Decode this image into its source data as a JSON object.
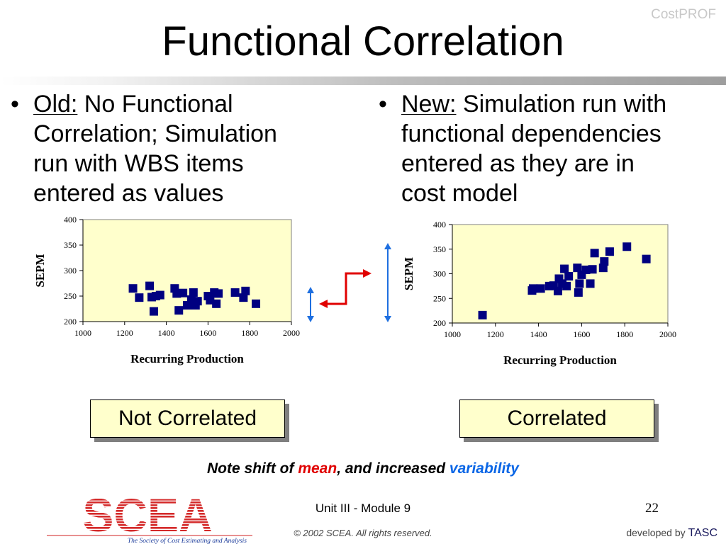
{
  "brand": "CostPROF",
  "title": "Functional Correlation",
  "bullets": {
    "left": {
      "lead": "Old:",
      "lines": [
        " No Functional",
        "Correlation; Simulation",
        "run with WBS items",
        "entered as values"
      ]
    },
    "right": {
      "lead": "New:",
      "lines": [
        " Simulation run with",
        "functional dependencies",
        "entered as they are in",
        "cost model"
      ]
    }
  },
  "labels": {
    "left": "Not Correlated",
    "right": "Correlated"
  },
  "note": {
    "prefix": "Note shift of ",
    "mean": "mean",
    "middle": ", and increased ",
    "variability": "variability"
  },
  "footer": {
    "center": "Unit III - Module 9",
    "page": "22",
    "copyright": "© 2002 SCEA.  All rights reserved.",
    "developed_by": "developed by ",
    "developer": "TASC"
  },
  "logo": {
    "text": "SCEA",
    "tagline": "The Society of Cost Estimating and Analysis"
  },
  "colors": {
    "plot_bg": "#ffffcc",
    "marker": "#000080",
    "arrow_red": "#e00000",
    "arrow_blue": "#1e6fe0",
    "label_bg": "#ffffcc"
  },
  "icons": {
    "shift_arrow": "red-step-arrow-icon",
    "range_left": "double-arrow-small-icon",
    "range_right": "double-arrow-large-icon"
  },
  "chart_data": [
    {
      "type": "scatter",
      "title": "",
      "xlabel": "Recurring Production",
      "ylabel": "SEPM",
      "xlim": [
        1000,
        2000
      ],
      "ylim": [
        200,
        400
      ],
      "xticks": [
        "1000",
        "1200",
        "1400",
        "1600",
        "1800",
        "2000"
      ],
      "yticks": [
        "200",
        "250",
        "300",
        "350",
        "400"
      ],
      "grid": false,
      "points": [
        [
          1240,
          265
        ],
        [
          1270,
          247
        ],
        [
          1320,
          270
        ],
        [
          1330,
          248
        ],
        [
          1340,
          220
        ],
        [
          1350,
          250
        ],
        [
          1370,
          252
        ],
        [
          1440,
          265
        ],
        [
          1450,
          255
        ],
        [
          1460,
          222
        ],
        [
          1480,
          256
        ],
        [
          1500,
          232
        ],
        [
          1520,
          243
        ],
        [
          1530,
          257
        ],
        [
          1540,
          232
        ],
        [
          1550,
          240
        ],
        [
          1600,
          250
        ],
        [
          1610,
          242
        ],
        [
          1630,
          257
        ],
        [
          1640,
          235
        ],
        [
          1650,
          255
        ],
        [
          1730,
          257
        ],
        [
          1770,
          247
        ],
        [
          1780,
          260
        ],
        [
          1830,
          235
        ]
      ]
    },
    {
      "type": "scatter",
      "title": "",
      "xlabel": "Recurring Production",
      "ylabel": "SEPM",
      "xlim": [
        1000,
        2000
      ],
      "ylim": [
        200,
        400
      ],
      "xticks": [
        "1000",
        "1200",
        "1400",
        "1600",
        "1800",
        "2000"
      ],
      "yticks": [
        "200",
        "250",
        "300",
        "350",
        "400"
      ],
      "grid": false,
      "points": [
        [
          1140,
          216
        ],
        [
          1370,
          266
        ],
        [
          1375,
          270
        ],
        [
          1410,
          270
        ],
        [
          1450,
          275
        ],
        [
          1470,
          276
        ],
        [
          1490,
          265
        ],
        [
          1495,
          290
        ],
        [
          1510,
          280
        ],
        [
          1520,
          310
        ],
        [
          1530,
          275
        ],
        [
          1540,
          295
        ],
        [
          1580,
          312
        ],
        [
          1585,
          262
        ],
        [
          1590,
          280
        ],
        [
          1600,
          298
        ],
        [
          1620,
          308
        ],
        [
          1640,
          280
        ],
        [
          1650,
          309
        ],
        [
          1660,
          342
        ],
        [
          1700,
          312
        ],
        [
          1705,
          325
        ],
        [
          1730,
          345
        ],
        [
          1810,
          355
        ],
        [
          1900,
          330
        ]
      ]
    }
  ]
}
